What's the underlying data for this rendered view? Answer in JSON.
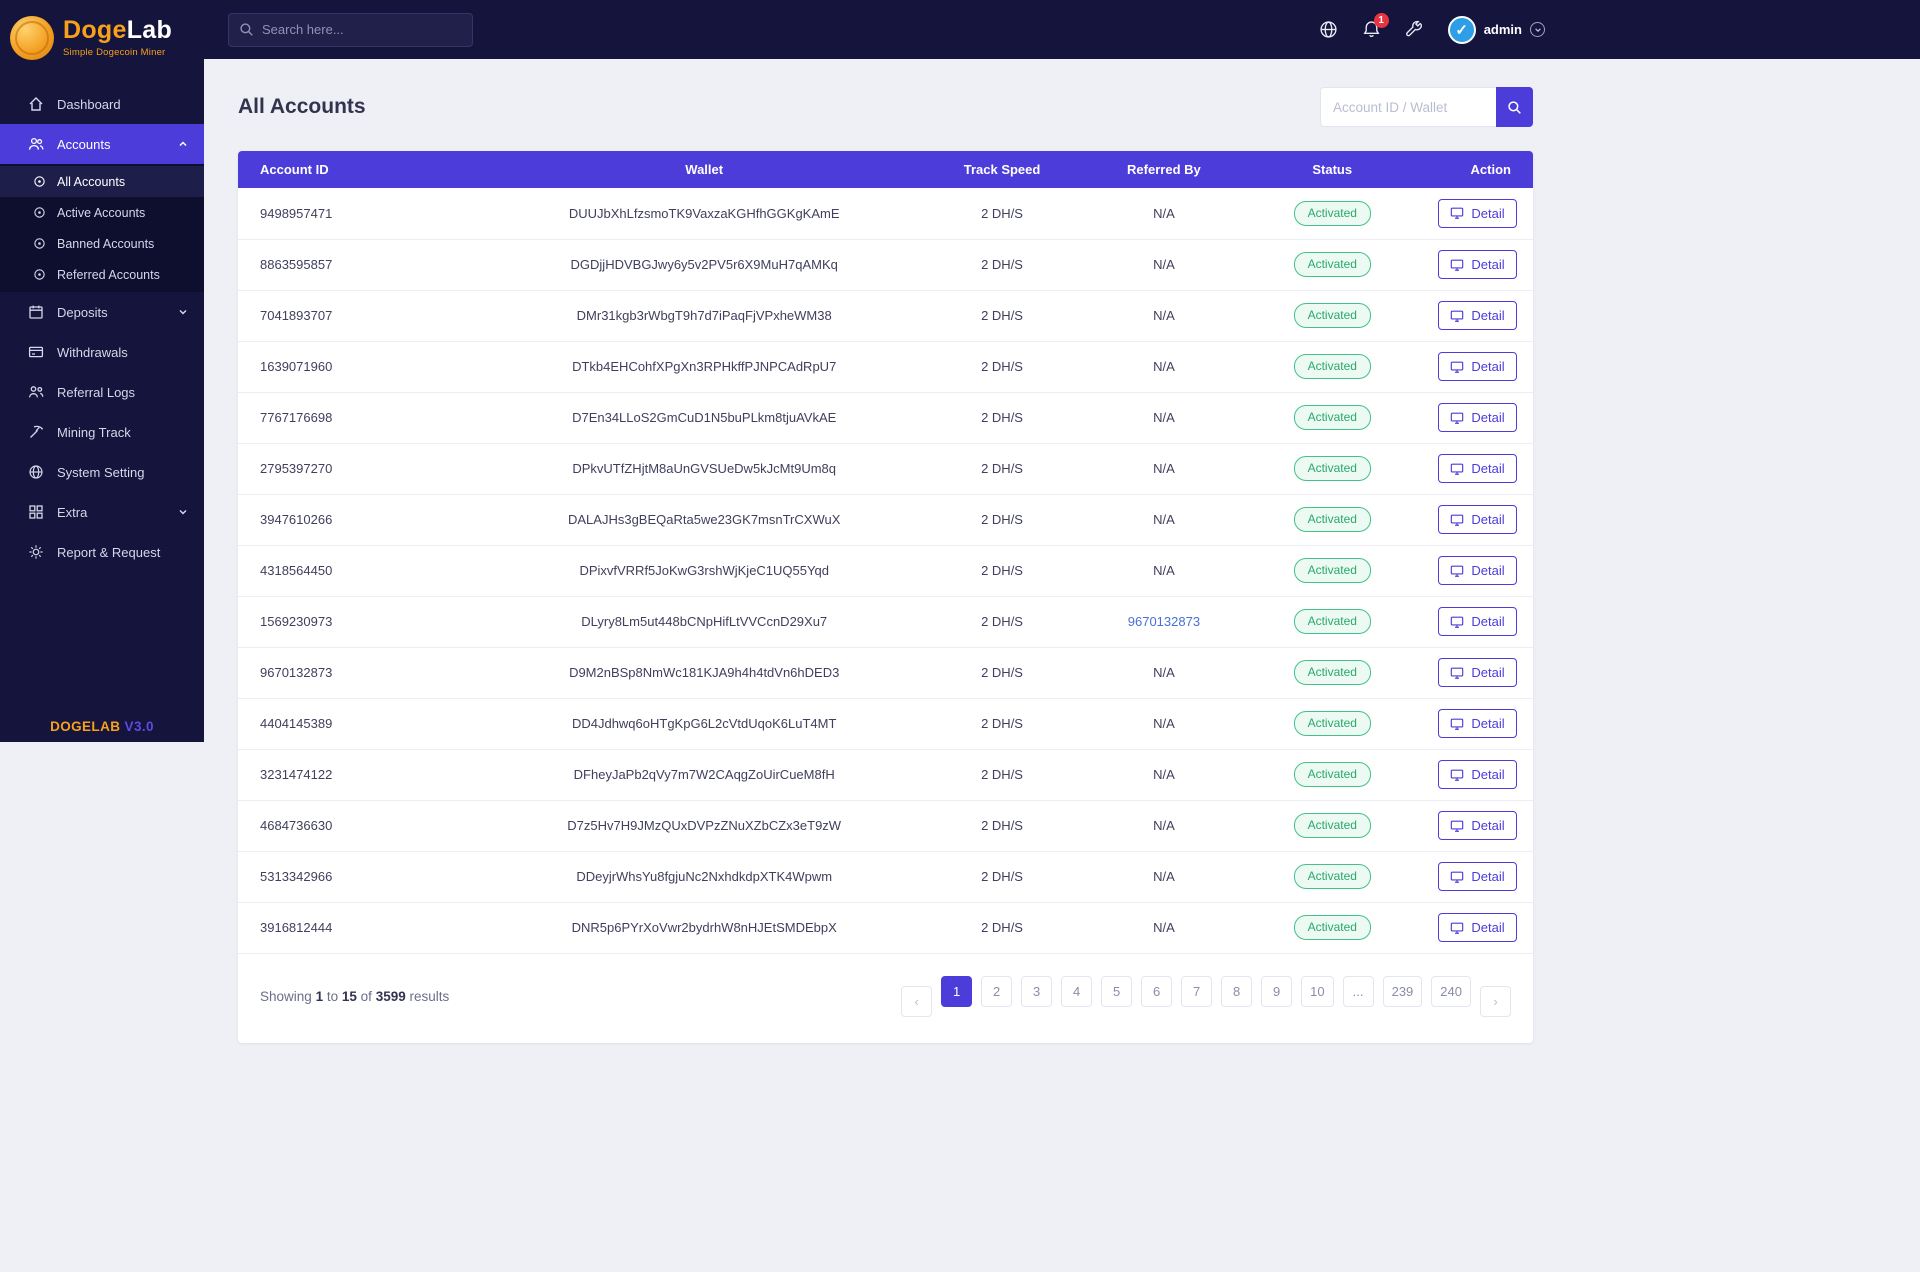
{
  "brand": {
    "name_primary": "Doge",
    "name_secondary": "Lab",
    "tagline": "Simple Dogecoin Miner",
    "version_brand": "DOGELAB",
    "version_number": "V3.0"
  },
  "header": {
    "search_placeholder": "Search here...",
    "notification_count": "1",
    "user_name": "admin"
  },
  "sidebar": {
    "items": [
      {
        "label": "Dashboard"
      },
      {
        "label": "Accounts",
        "children": [
          {
            "label": "All Accounts"
          },
          {
            "label": "Active Accounts"
          },
          {
            "label": "Banned Accounts"
          },
          {
            "label": "Referred Accounts"
          }
        ]
      },
      {
        "label": "Deposits"
      },
      {
        "label": "Withdrawals"
      },
      {
        "label": "Referral Logs"
      },
      {
        "label": "Mining Track"
      },
      {
        "label": "System Setting"
      },
      {
        "label": "Extra"
      },
      {
        "label": "Report & Request"
      }
    ]
  },
  "page": {
    "title": "All Accounts",
    "search_placeholder": "Account ID / Wallet"
  },
  "table": {
    "headers": [
      "Account ID",
      "Wallet",
      "Track Speed",
      "Referred By",
      "Status",
      "Action"
    ],
    "detail_label": "Detail",
    "rows": [
      {
        "account_id": "9498957471",
        "wallet": "DUUJbXhLfzsmoTK9VaxzaKGHfhGGKgKAmE",
        "track_speed": "2 DH/S",
        "referred_by": "N/A",
        "referred_is_link": false,
        "status": "Activated"
      },
      {
        "account_id": "8863595857",
        "wallet": "DGDjjHDVBGJwy6y5v2PV5r6X9MuH7qAMKq",
        "track_speed": "2 DH/S",
        "referred_by": "N/A",
        "referred_is_link": false,
        "status": "Activated"
      },
      {
        "account_id": "7041893707",
        "wallet": "DMr31kgb3rWbgT9h7d7iPaqFjVPxheWM38",
        "track_speed": "2 DH/S",
        "referred_by": "N/A",
        "referred_is_link": false,
        "status": "Activated"
      },
      {
        "account_id": "1639071960",
        "wallet": "DTkb4EHCohfXPgXn3RPHkffPJNPCAdRpU7",
        "track_speed": "2 DH/S",
        "referred_by": "N/A",
        "referred_is_link": false,
        "status": "Activated"
      },
      {
        "account_id": "7767176698",
        "wallet": "D7En34LLoS2GmCuD1N5buPLkm8tjuAVkAE",
        "track_speed": "2 DH/S",
        "referred_by": "N/A",
        "referred_is_link": false,
        "status": "Activated"
      },
      {
        "account_id": "2795397270",
        "wallet": "DPkvUTfZHjtM8aUnGVSUeDw5kJcMt9Um8q",
        "track_speed": "2 DH/S",
        "referred_by": "N/A",
        "referred_is_link": false,
        "status": "Activated"
      },
      {
        "account_id": "3947610266",
        "wallet": "DALAJHs3gBEQaRta5we23GK7msnTrCXWuX",
        "track_speed": "2 DH/S",
        "referred_by": "N/A",
        "referred_is_link": false,
        "status": "Activated"
      },
      {
        "account_id": "4318564450",
        "wallet": "DPixvfVRRf5JoKwG3rshWjKjeC1UQ55Yqd",
        "track_speed": "2 DH/S",
        "referred_by": "N/A",
        "referred_is_link": false,
        "status": "Activated"
      },
      {
        "account_id": "1569230973",
        "wallet": "DLyry8Lm5ut448bCNpHifLtVVCcnD29Xu7",
        "track_speed": "2 DH/S",
        "referred_by": "9670132873",
        "referred_is_link": true,
        "status": "Activated"
      },
      {
        "account_id": "9670132873",
        "wallet": "D9M2nBSp8NmWc181KJA9h4h4tdVn6hDED3",
        "track_speed": "2 DH/S",
        "referred_by": "N/A",
        "referred_is_link": false,
        "status": "Activated"
      },
      {
        "account_id": "4404145389",
        "wallet": "DD4Jdhwq6oHTgKpG6L2cVtdUqoK6LuT4MT",
        "track_speed": "2 DH/S",
        "referred_by": "N/A",
        "referred_is_link": false,
        "status": "Activated"
      },
      {
        "account_id": "3231474122",
        "wallet": "DFheyJaPb2qVy7m7W2CAqgZoUirCueM8fH",
        "track_speed": "2 DH/S",
        "referred_by": "N/A",
        "referred_is_link": false,
        "status": "Activated"
      },
      {
        "account_id": "4684736630",
        "wallet": "D7z5Hv7H9JMzQUxDVPzZNuXZbCZx3eT9zW",
        "track_speed": "2 DH/S",
        "referred_by": "N/A",
        "referred_is_link": false,
        "status": "Activated"
      },
      {
        "account_id": "5313342966",
        "wallet": "DDeyjrWhsYu8fgjuNc2NxhdkdpXTK4Wpwm",
        "track_speed": "2 DH/S",
        "referred_by": "N/A",
        "referred_is_link": false,
        "status": "Activated"
      },
      {
        "account_id": "3916812444",
        "wallet": "DNR5p6PYrXoVwr2bydrhW8nHJEtSMDEbpX",
        "track_speed": "2 DH/S",
        "referred_by": "N/A",
        "referred_is_link": false,
        "status": "Activated"
      }
    ]
  },
  "pagination": {
    "showing_label": "Showing",
    "from": "1",
    "to_label": "to",
    "to": "15",
    "of_label": "of",
    "total": "3599",
    "results_label": "results",
    "prev": "‹",
    "next": "›",
    "pages": [
      "1",
      "2",
      "3",
      "4",
      "5",
      "6",
      "7",
      "8",
      "9",
      "10",
      "...",
      "239",
      "240"
    ],
    "active_page": "1"
  },
  "colors": {
    "accent": "#4c3cd9",
    "sidebar_bg": "#14143c",
    "status_green": "#2aa86b",
    "status_badge_bg": "#ecfaf3",
    "link_blue": "#4a6fd8",
    "brand_orange": "#f7a01b",
    "notification_red": "#e8343f"
  }
}
